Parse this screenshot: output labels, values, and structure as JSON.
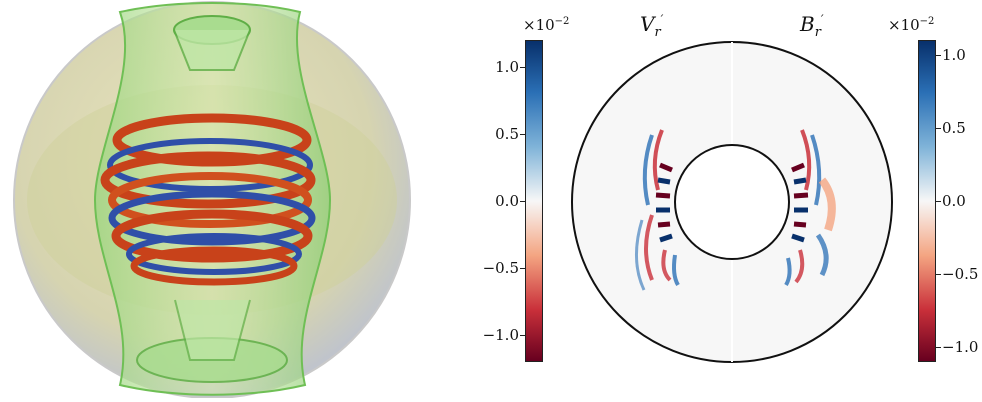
{
  "left_colorbar": {
    "exponent_base": "×10",
    "exponent_power": "−2",
    "ticks": [
      "1.0",
      "0.5",
      "0.0",
      "−0.5",
      "−1.0"
    ],
    "range": [
      -1.2,
      1.2
    ]
  },
  "right_colorbar": {
    "exponent_base": "×10",
    "exponent_power": "−2",
    "ticks": [
      "1.0",
      "0.5",
      "0.0",
      "−0.5",
      "−1.0"
    ],
    "range": [
      -1.1,
      1.1
    ]
  },
  "labels": {
    "left_field_base": "V",
    "left_field_sub": "r",
    "left_field_prime": "′",
    "right_field_base": "B",
    "right_field_sub": "r",
    "right_field_prime": "′"
  },
  "colors": {
    "positive": "#08306b",
    "negative": "#67001f",
    "shell_green": "#7ccf6a",
    "sphere_tint": "#d9d4a8",
    "structure_red": "#c8421a",
    "structure_blue": "#2f4fa8"
  }
}
